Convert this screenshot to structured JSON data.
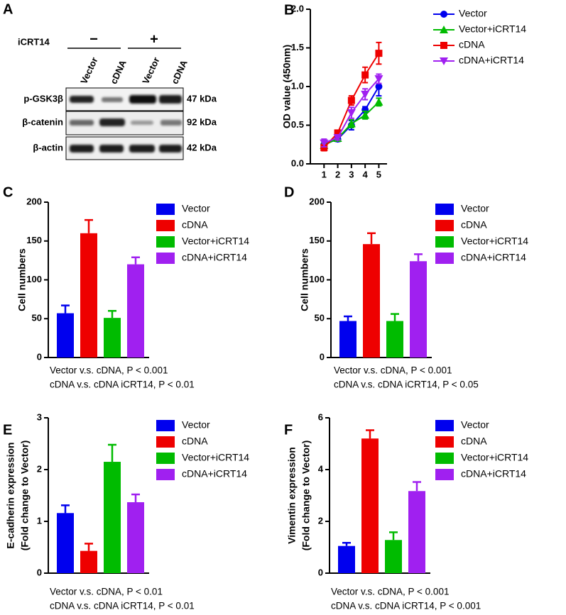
{
  "blot": {
    "panel": "A",
    "treatment": "iCRT14",
    "groups": [
      "−",
      "+"
    ],
    "lanes": [
      "Vector",
      "cDNA",
      "Vector",
      "cDNA"
    ],
    "rows": [
      {
        "label": "p-GSK3β",
        "size": "47 kDa"
      },
      {
        "label": "β-catenin",
        "size": "92 kDa"
      },
      {
        "label": "β-actin",
        "size": "42 kDa"
      }
    ]
  },
  "chart_data": [
    {
      "type": "line",
      "panel": "B",
      "y_label": "OD value (450nm)",
      "x": [
        1,
        2,
        3,
        4,
        5
      ],
      "xlim": [
        0,
        5.6
      ],
      "xticks": [
        1,
        2,
        3,
        4,
        5
      ],
      "ylim": [
        0,
        2
      ],
      "yticks": [
        {
          "value": 0,
          "label": "0.0"
        },
        0.5,
        {
          "value": 1,
          "label": "1.0"
        },
        1.5,
        {
          "value": 2,
          "label": "2.0"
        }
      ],
      "grid": false,
      "series": [
        {
          "name": "Vector",
          "color": "#0000ee",
          "marker": "circle",
          "values": [
            0.25,
            0.32,
            0.5,
            0.7,
            1.0
          ],
          "errors": [
            0.04,
            0.03,
            0.06,
            0.04,
            0.12
          ]
        },
        {
          "name": "Vector+iCRT14",
          "color": "#00bb00",
          "marker": "triangle-up",
          "values": [
            0.24,
            0.33,
            0.52,
            0.63,
            0.8
          ],
          "errors": [
            0.03,
            0.03,
            0.05,
            0.05,
            0.05
          ]
        },
        {
          "name": "cDNA",
          "color": "#ee0000",
          "marker": "square",
          "values": [
            0.21,
            0.4,
            0.82,
            1.15,
            1.43
          ],
          "errors": [
            0.04,
            0.03,
            0.06,
            0.1,
            0.14
          ]
        },
        {
          "name": "cDNA+iCRT14",
          "color": "#a020f0",
          "marker": "triangle-down",
          "values": [
            0.27,
            0.34,
            0.66,
            0.9,
            1.1
          ],
          "errors": [
            0.05,
            0.03,
            0.07,
            0.07,
            0.06
          ]
        }
      ]
    },
    {
      "type": "bar",
      "panel": "C",
      "y_label": "Cell numbers",
      "categories": [
        "Vector",
        "cDNA",
        "Vector+iCRT14",
        "cDNA+iCRT14"
      ],
      "colors": [
        "#0000ee",
        "#ee0000",
        "#00bb00",
        "#a020f0"
      ],
      "values": [
        57,
        160,
        51,
        120
      ],
      "errors": [
        10,
        17,
        9,
        9
      ],
      "ylim": [
        0,
        200
      ],
      "yticks": [
        0,
        50,
        100,
        150,
        200
      ],
      "grid": false,
      "notes": [
        "Vector v.s. cDNA, P < 0.001",
        "cDNA v.s. cDNA iCRT14, P < 0.01"
      ]
    },
    {
      "type": "bar",
      "panel": "D",
      "y_label": "Cell numbers",
      "categories": [
        "Vector",
        "cDNA",
        "Vector+iCRT14",
        "cDNA+iCRT14"
      ],
      "colors": [
        "#0000ee",
        "#ee0000",
        "#00bb00",
        "#a020f0"
      ],
      "values": [
        47,
        146,
        47,
        124
      ],
      "errors": [
        6,
        14,
        9,
        9
      ],
      "ylim": [
        0,
        200
      ],
      "yticks": [
        0,
        50,
        100,
        150,
        200
      ],
      "grid": false,
      "notes": [
        "Vector v.s. cDNA, P < 0.001",
        "cDNA v.s. cDNA iCRT14, P < 0.05"
      ]
    },
    {
      "type": "bar",
      "panel": "E",
      "y_label": [
        "E-cadherin expression",
        "(Fold change to Vector)"
      ],
      "categories": [
        "Vector",
        "cDNA",
        "Vector+iCRT14",
        "cDNA+iCRT14"
      ],
      "colors": [
        "#0000ee",
        "#ee0000",
        "#00bb00",
        "#a020f0"
      ],
      "values": [
        1.16,
        0.43,
        2.15,
        1.37
      ],
      "errors": [
        0.15,
        0.14,
        0.33,
        0.15
      ],
      "ylim": [
        0,
        3
      ],
      "yticks": [
        0,
        1,
        2,
        3
      ],
      "grid": false,
      "notes": [
        "Vector v.s. cDNA, P < 0.01",
        "cDNA v.s. cDNA iCRT14, P < 0.01"
      ]
    },
    {
      "type": "bar",
      "panel": "F",
      "y_label": [
        "Vimentin expression",
        "(Fold change to Vector)"
      ],
      "categories": [
        "Vector",
        "cDNA",
        "Vector+iCRT14",
        "cDNA+iCRT14"
      ],
      "colors": [
        "#0000ee",
        "#ee0000",
        "#00bb00",
        "#a020f0"
      ],
      "values": [
        1.05,
        5.2,
        1.28,
        3.17
      ],
      "errors": [
        0.12,
        0.32,
        0.3,
        0.35
      ],
      "ylim": [
        0,
        6
      ],
      "yticks": [
        0,
        2,
        4,
        6
      ],
      "grid": false,
      "notes": [
        "Vector v.s. cDNA, P < 0.001",
        "cDNA v.s. cDNA iCRT14, P < 0.001"
      ]
    }
  ]
}
